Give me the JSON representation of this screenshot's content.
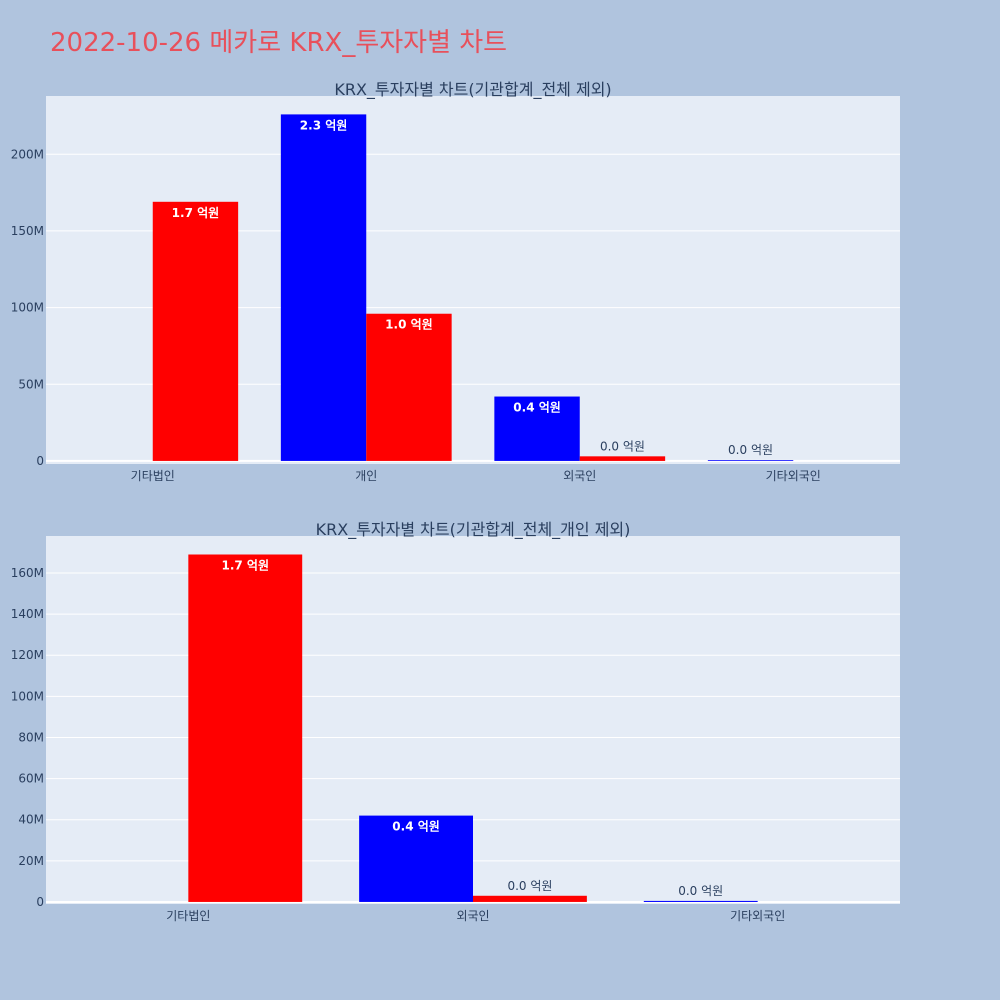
{
  "title": "2022-10-26 메카로 KRX_투자자별 차트",
  "colors": {
    "buy": "#0000ff",
    "sell": "#ff0000",
    "plot_bg": "#e5ecf6",
    "page_bg": "#b0c4de"
  },
  "chart_data": [
    {
      "type": "bar",
      "title": "KRX_투자자별 차트(기관합계_전체 제외)",
      "categories": [
        "기타법인",
        "개인",
        "외국인",
        "기타외국인"
      ],
      "series": [
        {
          "color": "#0000ff",
          "values": [
            0,
            226000000,
            42000000,
            500000
          ],
          "labels": [
            "",
            "2.3 억원",
            "0.4 억원",
            "0.0 억원"
          ]
        },
        {
          "color": "#ff0000",
          "values": [
            169000000,
            96000000,
            3000000,
            0
          ],
          "labels": [
            "1.7 억원",
            "1.0 억원",
            "0.0 억원",
            ""
          ]
        }
      ],
      "yticks": [
        {
          "value": 0,
          "label": "0"
        },
        {
          "value": 50000000,
          "label": "50M"
        },
        {
          "value": 100000000,
          "label": "100M"
        },
        {
          "value": 150000000,
          "label": "150M"
        },
        {
          "value": 200000000,
          "label": "200M"
        }
      ],
      "ylim": [
        -2000000,
        238000000
      ]
    },
    {
      "type": "bar",
      "title": "KRX_투자자별 차트(기관합계_전체_개인 제외)",
      "categories": [
        "기타법인",
        "외국인",
        "기타외국인"
      ],
      "series": [
        {
          "color": "#0000ff",
          "values": [
            0,
            42000000,
            500000
          ],
          "labels": [
            "",
            "0.4 억원",
            "0.0 억원"
          ]
        },
        {
          "color": "#ff0000",
          "values": [
            169000000,
            3000000,
            0
          ],
          "labels": [
            "1.7 억원",
            "0.0 억원",
            ""
          ]
        }
      ],
      "yticks": [
        {
          "value": 0,
          "label": "0"
        },
        {
          "value": 20000000,
          "label": "20M"
        },
        {
          "value": 40000000,
          "label": "40M"
        },
        {
          "value": 60000000,
          "label": "60M"
        },
        {
          "value": 80000000,
          "label": "80M"
        },
        {
          "value": 100000000,
          "label": "100M"
        },
        {
          "value": 120000000,
          "label": "120M"
        },
        {
          "value": 140000000,
          "label": "140M"
        },
        {
          "value": 160000000,
          "label": "160M"
        }
      ],
      "ylim": [
        -1000000,
        178000000
      ]
    }
  ]
}
